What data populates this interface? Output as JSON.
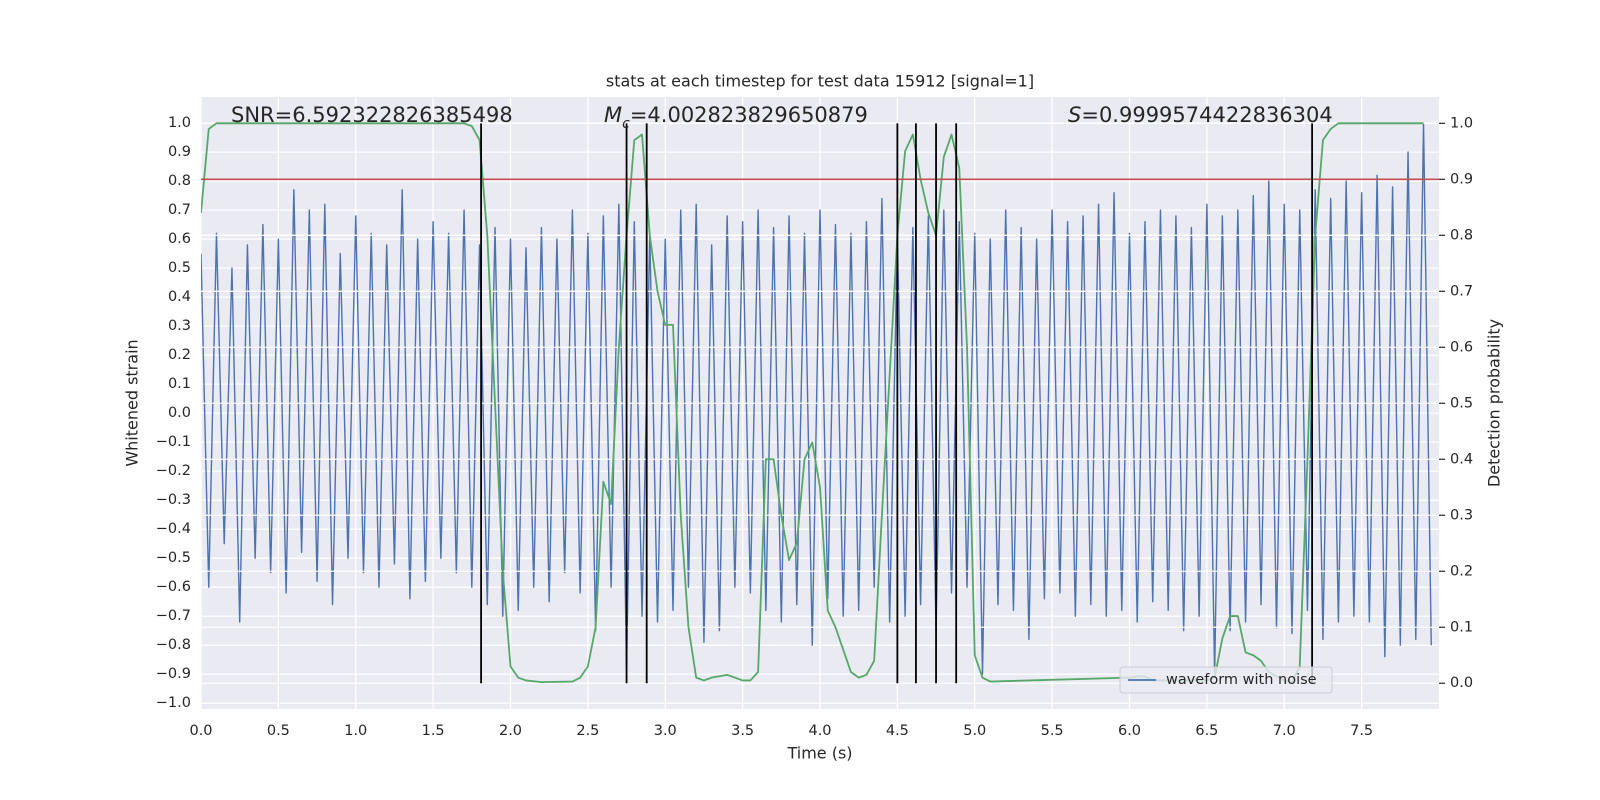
{
  "chart_data": {
    "type": "line",
    "title": "stats at each timestep for test data 15912 [signal=1]",
    "xlabel": "Time (s)",
    "ylabel": "Whitened strain",
    "y2label": "Detection probability",
    "annotations": [
      {
        "text": "SNR=6.592322826385498"
      },
      {
        "symbol": "M",
        "subscript": "c",
        "text": "=4.002823829650879"
      },
      {
        "symbol": "S",
        "text": "=0.9999574422836304"
      }
    ],
    "xlim": [
      0,
      8.0
    ],
    "ylim": [
      -1.02,
      1.09
    ],
    "y2lim": [
      -0.046,
      1.047
    ],
    "xticks": [
      {
        "value": 0,
        "label": "0.0"
      },
      0.5,
      {
        "value": 1,
        "label": "1.0"
      },
      1.5,
      {
        "value": 2,
        "label": "2.0"
      },
      2.5,
      {
        "value": 3,
        "label": "3.0"
      },
      3.5,
      {
        "value": 4,
        "label": "4.0"
      },
      4.5,
      {
        "value": 5,
        "label": "5.0"
      },
      5.5,
      {
        "value": 6,
        "label": "6.0"
      },
      6.5,
      {
        "value": 7,
        "label": "7.0"
      },
      7.5
    ],
    "yticks": [
      {
        "value": -1,
        "label": "−1.0"
      },
      {
        "value": -0.9,
        "label": "−0.9"
      },
      {
        "value": -0.8,
        "label": "−0.8"
      },
      {
        "value": -0.7,
        "label": "−0.7"
      },
      {
        "value": -0.6,
        "label": "−0.6"
      },
      {
        "value": -0.5,
        "label": "−0.5"
      },
      {
        "value": -0.4,
        "label": "−0.4"
      },
      {
        "value": -0.3,
        "label": "−0.3"
      },
      {
        "value": -0.2,
        "label": "−0.2"
      },
      {
        "value": -0.1,
        "label": "−0.1"
      },
      {
        "value": 0,
        "label": "0.0"
      },
      0.1,
      0.2,
      0.3,
      0.4,
      0.5,
      0.6,
      0.7,
      0.8,
      0.9,
      {
        "value": 1,
        "label": "1.0"
      }
    ],
    "y2ticks": [
      {
        "value": 0,
        "label": "0.0"
      },
      0.1,
      0.2,
      0.3,
      0.4,
      0.5,
      0.6,
      0.7,
      0.8,
      0.9,
      {
        "value": 1,
        "label": "1.0"
      }
    ],
    "grid": true,
    "legend": "lower right",
    "series": [
      {
        "name": "waveform with noise",
        "color": "#4c72b0",
        "x": [
          0,
          0.05,
          0.1,
          0.15,
          0.2,
          0.25,
          0.3,
          0.35,
          0.4,
          0.45,
          0.5,
          0.55,
          0.6,
          0.65,
          0.7,
          0.75,
          0.8,
          0.85,
          0.9,
          0.95,
          1.0,
          1.05,
          1.1,
          1.15,
          1.2,
          1.25,
          1.3,
          1.35,
          1.4,
          1.45,
          1.5,
          1.55,
          1.6,
          1.65,
          1.7,
          1.75,
          1.8,
          1.85,
          1.9,
          1.95,
          2.0,
          2.05,
          2.1,
          2.15,
          2.2,
          2.25,
          2.3,
          2.35,
          2.4,
          2.45,
          2.5,
          2.55,
          2.6,
          2.65,
          2.7,
          2.75,
          2.8,
          2.85,
          2.9,
          2.95,
          3.0,
          3.05,
          3.1,
          3.15,
          3.2,
          3.25,
          3.3,
          3.35,
          3.4,
          3.45,
          3.5,
          3.55,
          3.6,
          3.65,
          3.7,
          3.75,
          3.8,
          3.85,
          3.9,
          3.95,
          4.0,
          4.05,
          4.1,
          4.15,
          4.2,
          4.25,
          4.3,
          4.35,
          4.4,
          4.45,
          4.5,
          4.55,
          4.6,
          4.65,
          4.7,
          4.75,
          4.8,
          4.85,
          4.9,
          4.95,
          5.0,
          5.05,
          5.1,
          5.15,
          5.2,
          5.25,
          5.3,
          5.35,
          5.4,
          5.45,
          5.5,
          5.55,
          5.6,
          5.65,
          5.7,
          5.75,
          5.8,
          5.85,
          5.9,
          5.95,
          6.0,
          6.05,
          6.1,
          6.15,
          6.2,
          6.25,
          6.3,
          6.35,
          6.4,
          6.45,
          6.5,
          6.55,
          6.6,
          6.65,
          6.7,
          6.75,
          6.8,
          6.85,
          6.9,
          6.95,
          7.0,
          7.05,
          7.1,
          7.15,
          7.2,
          7.25,
          7.3,
          7.35,
          7.4,
          7.45,
          7.5,
          7.55,
          7.6,
          7.65,
          7.7,
          7.75,
          7.8,
          7.85,
          7.9,
          7.95
        ],
        "values": [
          0.55,
          -0.6,
          0.62,
          -0.45,
          0.5,
          -0.72,
          0.58,
          -0.5,
          0.65,
          -0.55,
          0.6,
          -0.62,
          0.77,
          -0.48,
          0.7,
          -0.58,
          0.72,
          -0.66,
          0.55,
          -0.5,
          0.68,
          -0.55,
          0.62,
          -0.6,
          0.58,
          -0.52,
          0.77,
          -0.64,
          0.6,
          -0.58,
          0.66,
          -0.5,
          0.62,
          -0.55,
          0.7,
          -0.6,
          0.58,
          -0.66,
          0.64,
          -0.7,
          0.6,
          -0.68,
          0.57,
          -0.6,
          0.64,
          -0.65,
          0.6,
          -0.55,
          0.7,
          -0.62,
          0.62,
          -0.75,
          0.68,
          -0.6,
          0.72,
          -0.88,
          0.66,
          -0.7,
          0.62,
          -0.72,
          0.6,
          -0.68,
          0.7,
          -0.6,
          0.72,
          -0.79,
          0.58,
          -0.75,
          0.68,
          -0.6,
          0.66,
          -0.62,
          0.7,
          -0.68,
          0.64,
          -0.72,
          0.68,
          -0.66,
          0.62,
          -0.8,
          0.7,
          -0.64,
          0.65,
          -0.7,
          0.62,
          -0.68,
          0.66,
          -0.6,
          0.74,
          -0.72,
          0.62,
          -0.7,
          0.64,
          -0.66,
          0.68,
          -0.75,
          0.7,
          -0.62,
          0.66,
          -0.6,
          0.62,
          -0.9,
          0.6,
          -0.66,
          0.7,
          -0.68,
          0.64,
          -0.78,
          0.6,
          -0.64,
          0.7,
          -0.62,
          0.66,
          -0.7,
          0.68,
          -0.66,
          0.72,
          -0.7,
          0.76,
          -0.68,
          0.62,
          -0.72,
          0.66,
          -0.65,
          0.7,
          -0.68,
          0.68,
          -0.75,
          0.64,
          -0.7,
          0.72,
          -0.9,
          0.68,
          -0.75,
          0.7,
          -0.72,
          0.75,
          -0.66,
          0.8,
          -0.74,
          0.72,
          -0.76,
          0.7,
          -0.68,
          0.77,
          -0.78,
          0.74,
          -0.72,
          0.8,
          -0.7,
          0.76,
          -0.72,
          0.82,
          -0.84,
          0.78,
          -0.8,
          0.9,
          -0.78,
          1.0,
          -0.8
        ]
      },
      {
        "color": "#55a868",
        "axis": "y2",
        "x": [
          0,
          0.05,
          0.1,
          1.7,
          1.75,
          1.8,
          1.85,
          1.9,
          1.95,
          2.0,
          2.05,
          2.1,
          2.2,
          2.4,
          2.45,
          2.5,
          2.55,
          2.6,
          2.65,
          2.7,
          2.75,
          2.8,
          2.85,
          2.9,
          2.95,
          3.0,
          3.05,
          3.1,
          3.15,
          3.2,
          3.25,
          3.3,
          3.4,
          3.5,
          3.55,
          3.6,
          3.65,
          3.7,
          3.75,
          3.8,
          3.85,
          3.9,
          3.95,
          4.0,
          4.05,
          4.1,
          4.15,
          4.2,
          4.25,
          4.3,
          4.35,
          4.4,
          4.5,
          4.55,
          4.6,
          4.65,
          4.7,
          4.75,
          4.8,
          4.85,
          4.9,
          4.95,
          5.0,
          5.05,
          5.1,
          6.0,
          6.05,
          6.1,
          6.15,
          6.5,
          6.55,
          6.6,
          6.65,
          6.7,
          6.75,
          6.8,
          6.85,
          6.9,
          7.0,
          7.05,
          7.1,
          7.15,
          7.2,
          7.25,
          7.3,
          7.35,
          7.9
        ],
        "values": [
          0.84,
          0.99,
          1.0,
          1.0,
          0.995,
          0.97,
          0.8,
          0.5,
          0.2,
          0.03,
          0.01,
          0.005,
          0.002,
          0.003,
          0.01,
          0.03,
          0.1,
          0.36,
          0.32,
          0.6,
          0.8,
          0.97,
          0.98,
          0.8,
          0.7,
          0.64,
          0.64,
          0.3,
          0.1,
          0.01,
          0.005,
          0.01,
          0.015,
          0.005,
          0.005,
          0.02,
          0.4,
          0.4,
          0.3,
          0.22,
          0.25,
          0.4,
          0.43,
          0.35,
          0.13,
          0.1,
          0.06,
          0.02,
          0.01,
          0.015,
          0.04,
          0.3,
          0.8,
          0.95,
          0.98,
          0.9,
          0.84,
          0.8,
          0.94,
          0.98,
          0.92,
          0.6,
          0.05,
          0.01,
          0.003,
          0.01,
          0.012,
          0.012,
          0.005,
          0.005,
          0.01,
          0.08,
          0.12,
          0.12,
          0.055,
          0.05,
          0.04,
          0.02,
          0.005,
          0.002,
          0.03,
          0.4,
          0.8,
          0.97,
          0.99,
          1.0,
          1.0
        ]
      }
    ],
    "threshold": {
      "y": 0.9,
      "axis": "y2",
      "color": "#c44e52"
    },
    "vlines": {
      "x": [
        1.81,
        2.75,
        2.88,
        4.5,
        4.62,
        4.75,
        4.88,
        7.18
      ],
      "ymin": 0,
      "ymax": 1,
      "axis": "y2",
      "color": "#000000"
    }
  }
}
